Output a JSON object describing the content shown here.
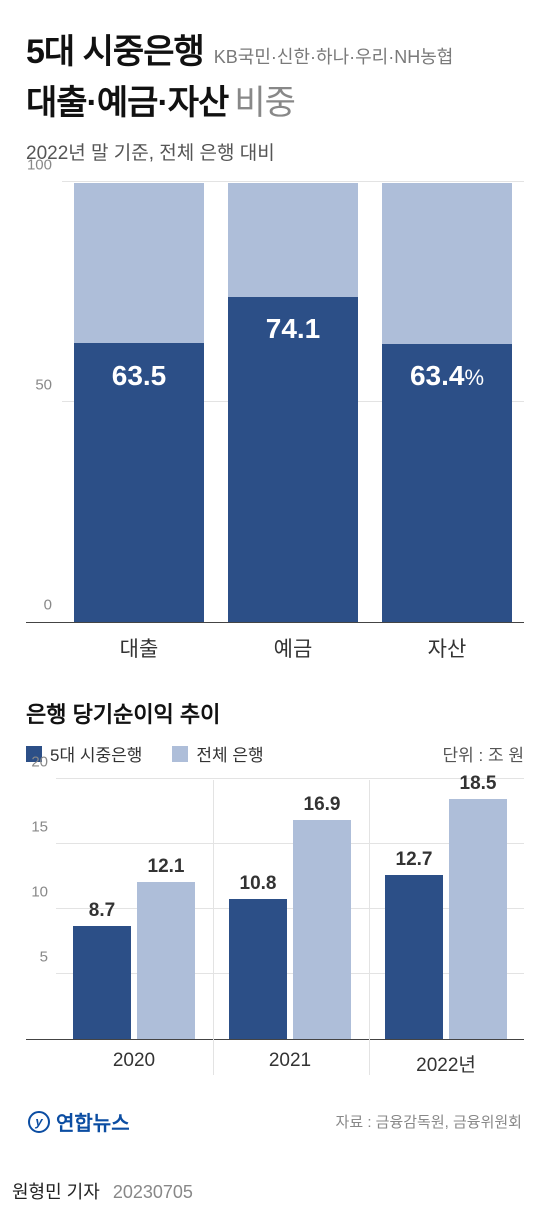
{
  "header": {
    "title_line1": "5대 시중은행",
    "banks": "KB국민·신한·하나·우리·NH농협",
    "title_line2_bold": "대출·예금·자산",
    "title_line2_light": "비중",
    "subtitle": "2022년 말 기준, 전체 은행 대비"
  },
  "chart1": {
    "type": "stacked-bar",
    "ylim": [
      0,
      100
    ],
    "yticks": [
      0,
      50,
      100
    ],
    "categories": [
      "대출",
      "예금",
      "자산"
    ],
    "values": [
      63.5,
      74.1,
      63.4
    ],
    "value_labels": [
      "63.5",
      "74.1",
      "63.4"
    ],
    "pct_suffix": "%",
    "show_pct_on": 2,
    "bar_dark_color": "#2c4f87",
    "bar_light_color": "#aebed9",
    "grid_color": "#e3e3e3",
    "label_color": "#ffffff",
    "label_fontsize": 28
  },
  "section2": {
    "title": "은행 당기순이익 추이",
    "legend": [
      {
        "label": "5대 시중은행",
        "color": "#2c4f87"
      },
      {
        "label": "전체 은행",
        "color": "#aebed9"
      }
    ],
    "unit": "단위 : 조 원"
  },
  "chart2": {
    "type": "grouped-bar",
    "ylim": [
      0,
      20
    ],
    "yticks": [
      5,
      10,
      15,
      20
    ],
    "categories": [
      "2020",
      "2021",
      "2022년"
    ],
    "series": [
      {
        "name": "5대 시중은행",
        "color": "#2c4f87",
        "values": [
          8.7,
          10.8,
          12.7
        ]
      },
      {
        "name": "전체 은행",
        "color": "#aebed9",
        "values": [
          12.1,
          16.9,
          18.5
        ]
      }
    ],
    "grid_color": "#e3e3e3",
    "value_fontsize": 19
  },
  "footer": {
    "logo_text": "연합뉴스",
    "source": "자료 : 금융감독원, 금융위원회"
  },
  "credit": {
    "author": "원형민 기자",
    "date": "20230705"
  }
}
